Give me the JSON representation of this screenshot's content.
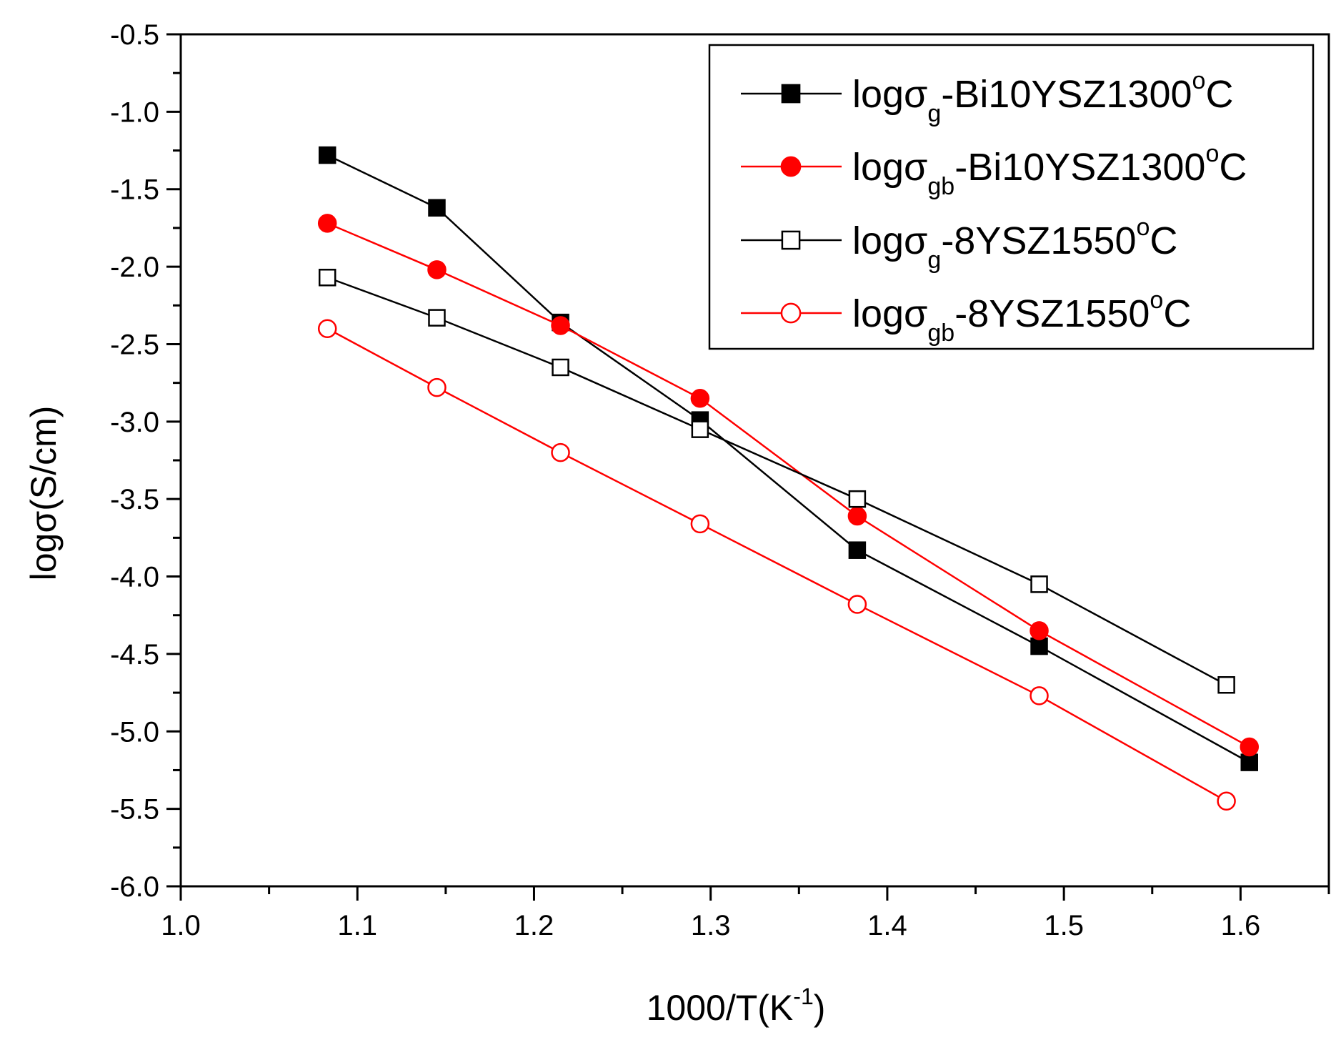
{
  "chart_data": {
    "type": "line",
    "xlabel": {
      "main": "1000/T(K",
      "sup": "-1",
      "close": ")"
    },
    "ylabel": "logσ(S/cm)",
    "xlim": [
      1.0,
      1.65
    ],
    "ylim": [
      -6.0,
      -0.5
    ],
    "x_ticks": [
      "1.0",
      "1.1",
      "1.2",
      "1.3",
      "1.4",
      "1.5",
      "1.6"
    ],
    "y_ticks": [
      "-6.0",
      "-5.5",
      "-5.0",
      "-4.5",
      "-4.0",
      "-3.5",
      "-3.0",
      "-2.5",
      "-2.0",
      "-1.5",
      "-1.0",
      "-0.5"
    ],
    "grid": false,
    "legend_position": "top-right",
    "series": [
      {
        "legend": {
          "prefix": "logσ",
          "sub": "g",
          "suffix": "-Bi10YSZ1300",
          "sup": "o",
          "end": "C"
        },
        "color": "#000000",
        "marker": "square-filled",
        "x": [
          1.083,
          1.145,
          1.215,
          1.294,
          1.383,
          1.486,
          1.605
        ],
        "y": [
          -1.28,
          -1.62,
          -2.36,
          -2.99,
          -3.83,
          -4.45,
          -5.2
        ]
      },
      {
        "legend": {
          "prefix": "logσ",
          "sub": "gb",
          "suffix": "-Bi10YSZ1300",
          "sup": "o",
          "end": "C"
        },
        "color": "#ff0000",
        "marker": "circle-filled",
        "x": [
          1.083,
          1.145,
          1.215,
          1.294,
          1.383,
          1.486,
          1.605
        ],
        "y": [
          -1.72,
          -2.02,
          -2.38,
          -2.85,
          -3.61,
          -4.35,
          -5.1
        ]
      },
      {
        "legend": {
          "prefix": "logσ",
          "sub": "g",
          "suffix": "-8YSZ1550",
          "sup": "o",
          "end": "C"
        },
        "color": "#000000",
        "marker": "square-open",
        "x": [
          1.083,
          1.145,
          1.215,
          1.294,
          1.383,
          1.486,
          1.592
        ],
        "y": [
          -2.07,
          -2.33,
          -2.65,
          -3.05,
          -3.5,
          -4.05,
          -4.7
        ]
      },
      {
        "legend": {
          "prefix": "logσ",
          "sub": "gb",
          "suffix": "-8YSZ1550",
          "sup": "o",
          "end": "C"
        },
        "color": "#ff0000",
        "marker": "circle-open",
        "x": [
          1.083,
          1.145,
          1.215,
          1.294,
          1.383,
          1.486,
          1.592
        ],
        "y": [
          -2.4,
          -2.78,
          -3.2,
          -3.66,
          -4.18,
          -4.77,
          -5.45
        ]
      }
    ]
  }
}
